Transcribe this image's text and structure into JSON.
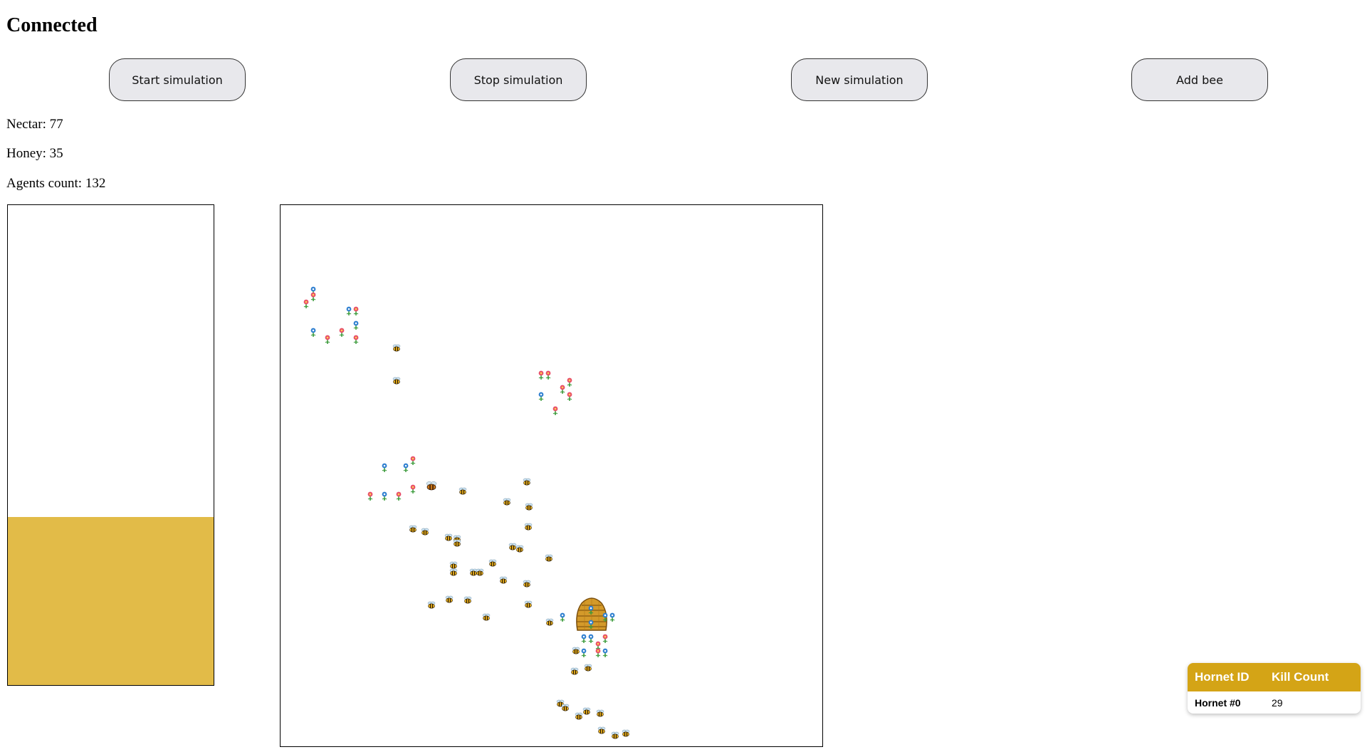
{
  "status": {
    "title": "Connected"
  },
  "controls": {
    "start_label": "Start simulation",
    "stop_label": "Stop simulation",
    "new_label": "New simulation",
    "add_bee_label": "Add bee"
  },
  "stats": {
    "nectar_text": "Nectar: 77",
    "honey_text": "Honey: 35",
    "agents_text": "Agents count: 132",
    "nectar": 77,
    "honey": 35,
    "agents_count": 132
  },
  "honey_level": 0.35,
  "colors": {
    "honey_fill": "#e2bb48",
    "table_header": "#d4a416",
    "flower_pink": "#e8506a",
    "flower_blue": "#2f7fd0",
    "bee_yellow": "#e8b020",
    "hive": "#d49a2a"
  },
  "simulation": {
    "hive_icon": "beehive-icon",
    "flower_icon": "flower-icon",
    "bee_icon": "bee-icon"
  },
  "hornet_table": {
    "headers": [
      "Hornet ID",
      "Kill Count"
    ],
    "rows": [
      {
        "id": "Hornet #0",
        "kills": "29"
      }
    ]
  }
}
